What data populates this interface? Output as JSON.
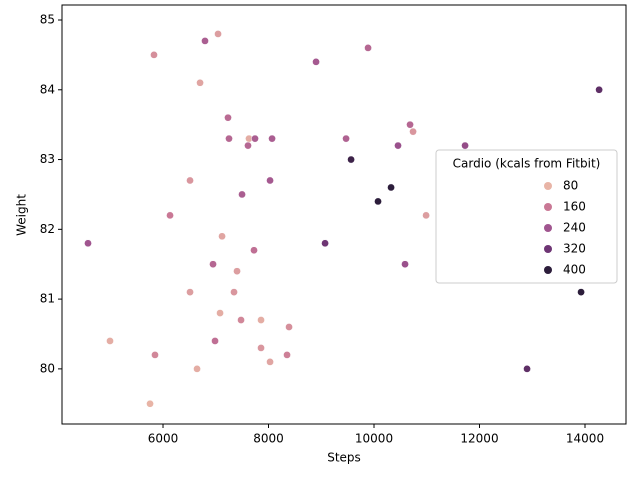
{
  "chart_data": {
    "type": "scatter",
    "x_label": "Steps",
    "y_label": "Weight",
    "x": [
      5829,
      6796,
      7043,
      6702,
      8901,
      9887,
      14267,
      7232,
      7251,
      7630,
      7744,
      8067,
      7611,
      9470,
      10683,
      10740,
      10455,
      11726,
      9565,
      6512,
      8029,
      7498,
      10323,
      10076,
      10987,
      6133,
      4578,
      7119,
      9072,
      7725,
      6948,
      10588,
      7403,
      6512,
      7346,
      13925,
      7081,
      7479,
      7858,
      8389,
      4995,
      6986,
      7858,
      5848,
      8351,
      8029,
      6645,
      12901,
      5754
    ],
    "values": [
      84.5,
      84.7,
      84.8,
      84.1,
      84.4,
      84.6,
      84.0,
      83.6,
      83.3,
      83.3,
      83.3,
      83.3,
      83.2,
      83.3,
      83.5,
      83.4,
      83.2,
      83.2,
      83.0,
      82.7,
      82.7,
      82.5,
      82.6,
      82.4,
      82.2,
      82.2,
      81.8,
      81.9,
      81.8,
      81.7,
      81.5,
      81.5,
      81.4,
      81.1,
      81.1,
      81.1,
      80.8,
      80.7,
      80.7,
      80.6,
      80.4,
      80.4,
      80.3,
      80.2,
      80.2,
      80.1,
      80.0,
      80.0,
      79.5
    ],
    "hue": [
      130,
      220,
      110,
      100,
      230,
      200,
      340,
      190,
      200,
      90,
      220,
      220,
      200,
      210,
      200,
      120,
      250,
      260,
      380,
      120,
      230,
      220,
      430,
      420,
      110,
      160,
      240,
      100,
      320,
      180,
      200,
      250,
      110,
      110,
      120,
      430,
      90,
      140,
      90,
      130,
      90,
      180,
      120,
      140,
      150,
      100,
      90,
      340,
      80
    ],
    "xlim": [
      4085,
      14777
    ],
    "ylim": [
      79.21,
      85.215
    ],
    "xticks": [
      6000,
      8000,
      10000,
      12000,
      14000
    ],
    "yticks": [
      80,
      81,
      82,
      83,
      84,
      85
    ],
    "legend": {
      "title": "Cardio (kcals from Fitbit)",
      "position": "center right",
      "entries": [
        {
          "value": 80,
          "color": "#e8b4a6"
        },
        {
          "value": 160,
          "color": "#c97895"
        },
        {
          "value": 240,
          "color": "#a0558f"
        },
        {
          "value": 320,
          "color": "#6e3574"
        },
        {
          "value": 400,
          "color": "#2c1d3b"
        }
      ]
    }
  }
}
